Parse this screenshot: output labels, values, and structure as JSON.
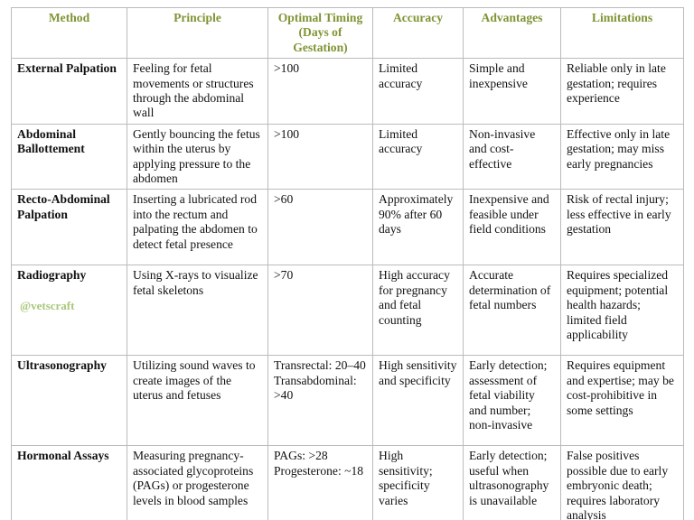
{
  "table": {
    "header": [
      "Method",
      "Principle",
      "Optimal Timing (Days of Gestation)",
      "Accuracy",
      "Advantages",
      "Limitations"
    ],
    "rows": [
      [
        "External Palpation",
        "Feeling for fetal movements or structures through the abdominal wall",
        ">100",
        "Limited accuracy",
        "Simple and inexpensive",
        "Reliable only in late gestation; requires experience"
      ],
      [
        "Abdominal Ballottement",
        "Gently bouncing the fetus within the uterus by applying pressure to the abdomen",
        ">100",
        "Limited accuracy",
        "Non-invasive and cost-effective",
        "Effective only in late gestation; may miss early pregnancies"
      ],
      [
        "Recto-Abdominal Palpation",
        "Inserting a lubricated rod into the rectum and palpating the abdomen to detect fetal presence",
        ">60",
        "Approximately 90% after 60 days",
        "Inexpensive and feasible under field conditions",
        "Risk of rectal injury; less effective in early gestation"
      ],
      [
        "Radiography",
        "Using X-rays to visualize fetal skeletons",
        ">70",
        "High accuracy for pregnancy and fetal counting",
        "Accurate determination of fetal numbers",
        "Requires specialized equipment; potential health hazards; limited field applicability"
      ],
      [
        "Ultrasonography",
        "Utilizing sound waves to create images of the uterus and fetuses",
        "Transrectal: 20–40 Transabdominal: >40",
        "High sensitivity and specificity",
        "Early detection; assessment of fetal viability and number; non-invasive",
        "Requires equipment and expertise; may be cost-prohibitive in some settings"
      ],
      [
        "Hormonal Assays",
        "Measuring pregnancy-associated glycoproteins (PAGs) or progesterone levels in blood samples",
        "PAGs: >28 Progesterone: ~18",
        "High sensitivity; specificity varies",
        "Early detection; useful when ultrasonography is unavailable",
        "False positives possible due to early embryonic death; requires laboratory analysis"
      ]
    ]
  },
  "watermark": "@vetscraft"
}
